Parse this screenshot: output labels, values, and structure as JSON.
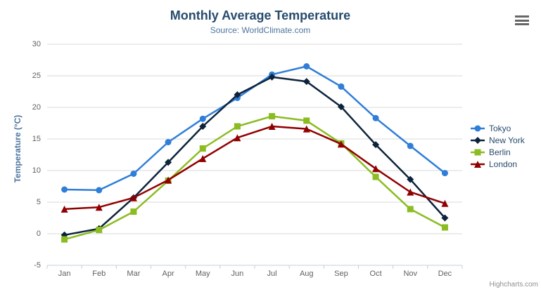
{
  "chart_data": {
    "type": "line",
    "title": "Monthly Average Temperature",
    "subtitle": "Source: WorldClimate.com",
    "categories": [
      "Jan",
      "Feb",
      "Mar",
      "Apr",
      "May",
      "Jun",
      "Jul",
      "Aug",
      "Sep",
      "Oct",
      "Nov",
      "Dec"
    ],
    "xlabel": "",
    "ylabel": "Temperature (°C)",
    "ylim": [
      -5,
      30
    ],
    "yticks": [
      -5,
      0,
      5,
      10,
      15,
      20,
      25,
      30
    ],
    "grid": true,
    "legend_position": "right",
    "series": [
      {
        "name": "Tokyo",
        "color": "#2f7ed8",
        "marker": "circle",
        "values": [
          7.0,
          6.9,
          9.5,
          14.5,
          18.2,
          21.5,
          25.2,
          26.5,
          23.3,
          18.3,
          13.9,
          9.6
        ]
      },
      {
        "name": "New York",
        "color": "#0d233a",
        "marker": "diamond",
        "values": [
          -0.2,
          0.8,
          5.7,
          11.3,
          17.0,
          22.0,
          24.8,
          24.1,
          20.1,
          14.1,
          8.6,
          2.5
        ]
      },
      {
        "name": "Berlin",
        "color": "#8bbc21",
        "marker": "square",
        "values": [
          -0.9,
          0.6,
          3.5,
          8.4,
          13.5,
          17.0,
          18.6,
          17.9,
          14.3,
          9.0,
          3.9,
          1.0
        ]
      },
      {
        "name": "London",
        "color": "#910000",
        "marker": "triangle",
        "values": [
          3.9,
          4.2,
          5.7,
          8.5,
          11.9,
          15.2,
          17.0,
          16.6,
          14.2,
          10.3,
          6.6,
          4.8
        ]
      }
    ]
  },
  "credits": "Highcharts.com",
  "colors": {
    "title": "#274b6d",
    "subtitle": "#4d759e",
    "axis_title": "#4d759e",
    "axis_labels": "#606060",
    "gridline": "#d8d8d8",
    "axis_line": "#c0d0e0",
    "legend_text": "#274b6d",
    "credits": "#909090",
    "menu_icon": "#666666"
  }
}
